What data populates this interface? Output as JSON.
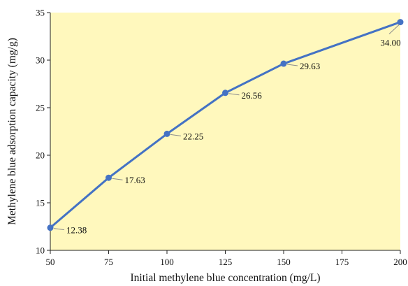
{
  "colors": {
    "background": "#ffffff",
    "plot_area": "#fff8bd",
    "series": "#4472c4",
    "axis": "#222222",
    "leader": "#8c8c8c"
  },
  "chart_data": {
    "type": "line",
    "title": "",
    "xlabel": "Initial methylene blue concentration (mg/L)",
    "ylabel": "Methylene blue adsorption capacity (mg/g)",
    "xlim": [
      50,
      200
    ],
    "ylim": [
      10,
      35
    ],
    "x_ticks": [
      50,
      75,
      100,
      125,
      150,
      175,
      200
    ],
    "y_ticks": [
      10,
      15,
      20,
      25,
      30,
      35
    ],
    "grid": false,
    "legend": "none",
    "series": [
      {
        "x": [
          50,
          75,
          100,
          125,
          150,
          200
        ],
        "y": [
          12.38,
          17.63,
          22.25,
          26.56,
          29.63,
          34.0
        ],
        "labels": [
          "12.38",
          "17.63",
          "22.25",
          "26.56",
          "29.63",
          "34.00"
        ],
        "label_position": [
          "right",
          "right",
          "right",
          "right",
          "right",
          "below"
        ]
      }
    ]
  }
}
